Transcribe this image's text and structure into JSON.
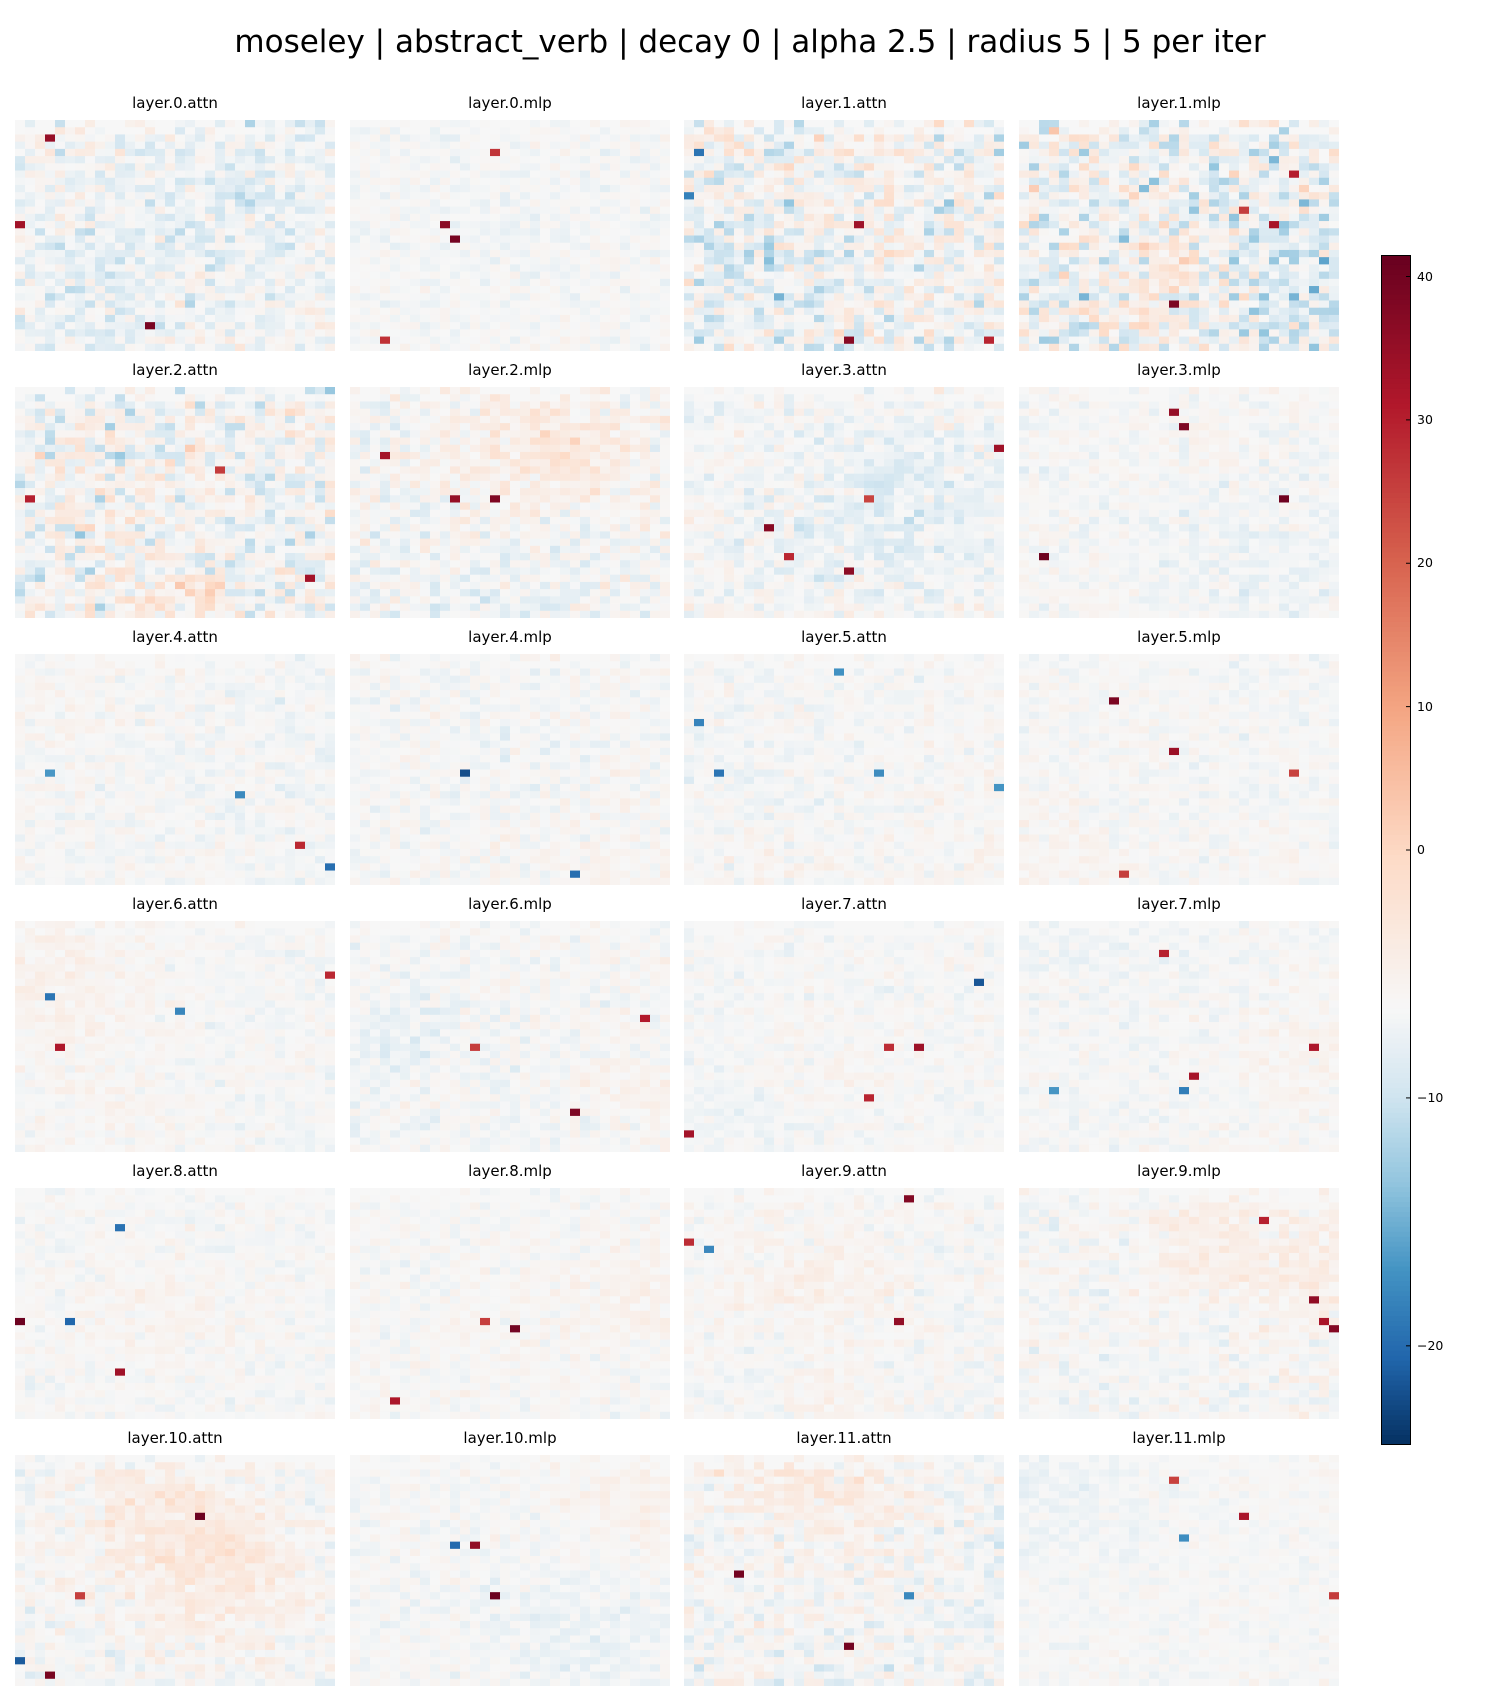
{
  "title": "moseley | abstract_verb | decay 0 | alpha 2.5 | radius 5 | 5 per iter",
  "chart_data": {
    "type": "heatmap",
    "colormap": "RdBu_r",
    "grid_shape": [
      32,
      32
    ],
    "value_range": [
      -24,
      41.5
    ],
    "colorbar_ticks": [
      -20,
      -10,
      0,
      10,
      20,
      30,
      40
    ],
    "panels": [
      {
        "name": "layer.0.attn",
        "row": 0,
        "col": 0
      },
      {
        "name": "layer.0.mlp",
        "row": 0,
        "col": 1
      },
      {
        "name": "layer.1.attn",
        "row": 0,
        "col": 2
      },
      {
        "name": "layer.1.mlp",
        "row": 0,
        "col": 3
      },
      {
        "name": "layer.2.attn",
        "row": 1,
        "col": 0
      },
      {
        "name": "layer.2.mlp",
        "row": 1,
        "col": 1
      },
      {
        "name": "layer.3.attn",
        "row": 1,
        "col": 2
      },
      {
        "name": "layer.3.mlp",
        "row": 1,
        "col": 3
      },
      {
        "name": "layer.4.attn",
        "row": 2,
        "col": 0
      },
      {
        "name": "layer.4.mlp",
        "row": 2,
        "col": 1
      },
      {
        "name": "layer.5.attn",
        "row": 2,
        "col": 2
      },
      {
        "name": "layer.5.mlp",
        "row": 2,
        "col": 3
      },
      {
        "name": "layer.6.attn",
        "row": 3,
        "col": 0
      },
      {
        "name": "layer.6.mlp",
        "row": 3,
        "col": 1
      },
      {
        "name": "layer.7.attn",
        "row": 3,
        "col": 2
      },
      {
        "name": "layer.7.mlp",
        "row": 3,
        "col": 3
      },
      {
        "name": "layer.8.attn",
        "row": 4,
        "col": 0
      },
      {
        "name": "layer.8.mlp",
        "row": 4,
        "col": 1
      },
      {
        "name": "layer.9.attn",
        "row": 4,
        "col": 2
      },
      {
        "name": "layer.9.mlp",
        "row": 4,
        "col": 3
      },
      {
        "name": "layer.10.attn",
        "row": 5,
        "col": 0
      },
      {
        "name": "layer.10.mlp",
        "row": 5,
        "col": 1
      },
      {
        "name": "layer.11.attn",
        "row": 5,
        "col": 2
      },
      {
        "name": "layer.11.mlp",
        "row": 5,
        "col": 3
      }
    ]
  }
}
